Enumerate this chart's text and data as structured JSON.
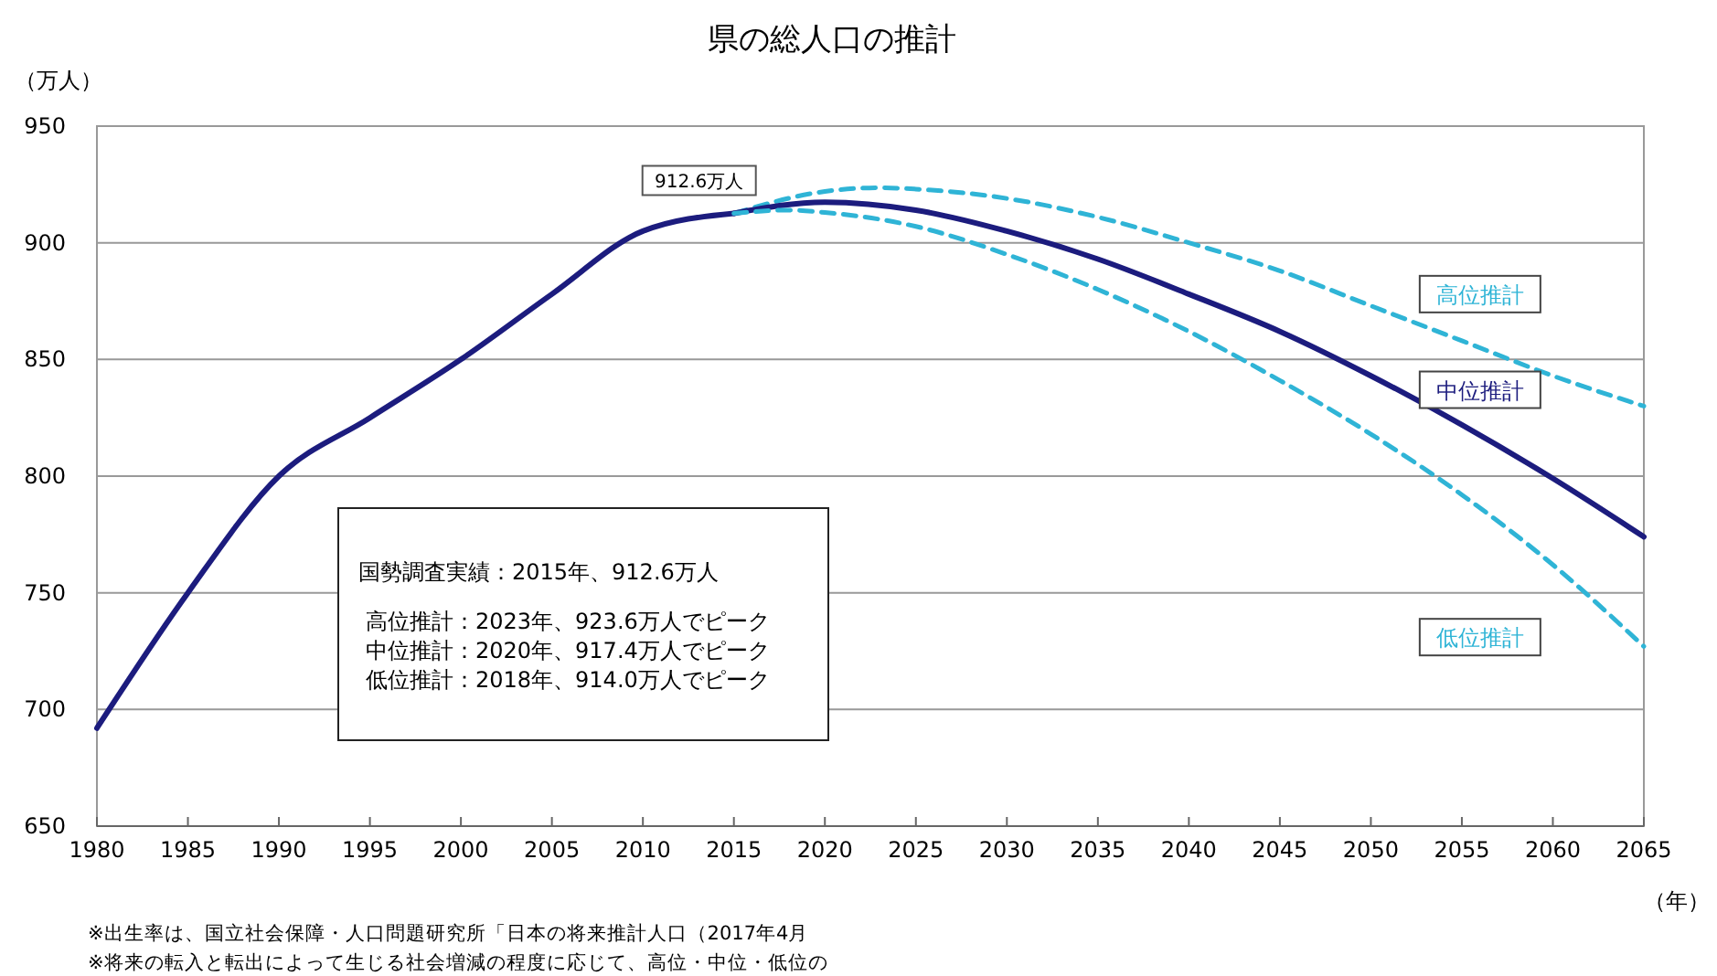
{
  "chart_data": {
    "type": "line",
    "title": "県の総人口の推計",
    "ylabel": "（万人）",
    "xlabel": "（年）",
    "xlim": [
      1980,
      2065
    ],
    "xticks": [
      1980,
      1985,
      1990,
      1995,
      2000,
      2005,
      2010,
      2015,
      2020,
      2025,
      2030,
      2035,
      2040,
      2045,
      2050,
      2055,
      2060,
      2065
    ],
    "ylim": [
      650,
      950
    ],
    "yticks": [
      650,
      700,
      750,
      800,
      850,
      900,
      950
    ],
    "grid": "y",
    "marker": "none",
    "series": [
      {
        "color": "#1c1c7e",
        "line_style": "solid",
        "x": [
          1980,
          1985,
          1990,
          1995,
          2000,
          2005,
          2010,
          2015
        ],
        "values": [
          692,
          750,
          800,
          825,
          850,
          878,
          905,
          912.6
        ]
      },
      {
        "name": "高位推計",
        "color": "#2fb4d6",
        "line_style": "dashed",
        "x": [
          2015,
          2020,
          2023,
          2025,
          2030,
          2035,
          2040,
          2045,
          2050,
          2055,
          2060,
          2065
        ],
        "values": [
          912.6,
          922,
          923.6,
          923,
          919,
          911,
          900,
          888,
          873,
          858,
          843,
          830
        ]
      },
      {
        "name": "中位推計",
        "color": "#1c1c7e",
        "line_style": "solid",
        "x": [
          2015,
          2020,
          2025,
          2030,
          2035,
          2040,
          2045,
          2050,
          2055,
          2060,
          2065
        ],
        "values": [
          912.6,
          917.4,
          914,
          905,
          893,
          878,
          862,
          843,
          822,
          799,
          774
        ]
      },
      {
        "name": "低位推計",
        "color": "#2fb4d6",
        "line_style": "dashed",
        "x": [
          2015,
          2018,
          2020,
          2025,
          2030,
          2035,
          2040,
          2045,
          2050,
          2055,
          2060,
          2065
        ],
        "values": [
          912.6,
          914,
          913,
          907,
          895,
          880,
          862,
          841,
          818,
          792,
          762,
          727
        ]
      }
    ],
    "annotations": [
      {
        "text": "912.6万人",
        "x": 2015,
        "y": 912.6
      },
      "国勢調査実績：2015年、912.6万人",
      "高位推計：2023年、923.6万人でピーク",
      "中位推計：2020年、917.4万人でピーク",
      "低位推計：2018年、914.0万人でピーク",
      "※出生率は、国立社会保障・人口問題研究所「日本の将来推計人口（2017年4月",
      "※将来の転入と転出によって生じる社会増減の程度に応じて、高位・中位・低位の"
    ]
  }
}
